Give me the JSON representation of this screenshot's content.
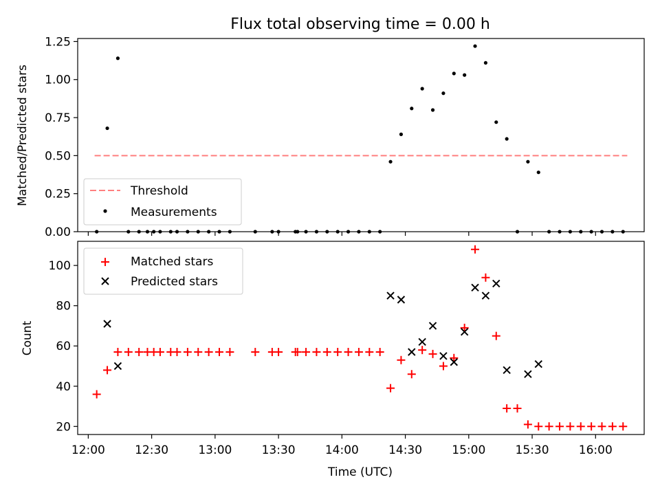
{
  "title": "Flux total observing time = 0.00 h",
  "colors": {
    "threshold": "#ff7f7f",
    "matched": "#ff0000",
    "predicted": "#000000",
    "measurement": "#000000"
  },
  "chart_data": [
    {
      "type": "scatter",
      "ylabel": "Matched/Predicted stars",
      "xlabel": "",
      "ylim": [
        0,
        1.27
      ],
      "yticks": [
        0,
        0.25,
        0.5,
        0.75,
        1.0,
        1.25
      ],
      "ytick_labels": [
        "0.00",
        "0.25",
        "0.50",
        "0.75",
        "1.00",
        "1.25"
      ],
      "grid": false,
      "legend": "lower-left",
      "threshold": {
        "name": "Threshold",
        "value": 0.5,
        "x_range": [
          "12:03",
          "16:15"
        ]
      },
      "series": [
        {
          "name": "Measurements",
          "points": [
            [
              "12:04",
              0
            ],
            [
              "12:09",
              0.68
            ],
            [
              "12:14",
              1.14
            ],
            [
              "12:19",
              0
            ],
            [
              "12:24",
              0
            ],
            [
              "12:28",
              0
            ],
            [
              "12:31",
              0
            ],
            [
              "12:34",
              0
            ],
            [
              "12:39",
              0
            ],
            [
              "12:42",
              0
            ],
            [
              "12:47",
              0
            ],
            [
              "12:52",
              0
            ],
            [
              "12:57",
              0
            ],
            [
              "13:02",
              0
            ],
            [
              "13:07",
              0
            ],
            [
              "13:19",
              0
            ],
            [
              "13:27",
              0
            ],
            [
              "13:30",
              0
            ],
            [
              "13:38",
              0
            ],
            [
              "13:39",
              0
            ],
            [
              "13:43",
              0
            ],
            [
              "13:48",
              0
            ],
            [
              "13:53",
              0
            ],
            [
              "13:58",
              0
            ],
            [
              "14:03",
              0
            ],
            [
              "14:08",
              0
            ],
            [
              "14:13",
              0
            ],
            [
              "14:18",
              0
            ],
            [
              "14:23",
              0.46
            ],
            [
              "14:28",
              0.64
            ],
            [
              "14:33",
              0.81
            ],
            [
              "14:38",
              0.94
            ],
            [
              "14:43",
              0.8
            ],
            [
              "14:48",
              0.91
            ],
            [
              "14:53",
              1.04
            ],
            [
              "14:58",
              1.03
            ],
            [
              "15:03",
              1.22
            ],
            [
              "15:08",
              1.11
            ],
            [
              "15:13",
              0.72
            ],
            [
              "15:18",
              0.61
            ],
            [
              "15:23",
              0
            ],
            [
              "15:28",
              0.46
            ],
            [
              "15:33",
              0.39
            ],
            [
              "15:38",
              0
            ],
            [
              "15:43",
              0
            ],
            [
              "15:48",
              0
            ],
            [
              "15:53",
              0
            ],
            [
              "15:58",
              0
            ],
            [
              "16:03",
              0
            ],
            [
              "16:08",
              0
            ],
            [
              "16:13",
              0
            ]
          ]
        }
      ]
    },
    {
      "type": "scatter",
      "ylabel": "Count",
      "xlabel": "Time (UTC)",
      "ylim": [
        16,
        112
      ],
      "yticks": [
        20,
        40,
        60,
        80,
        100
      ],
      "ytick_labels": [
        "20",
        "40",
        "60",
        "80",
        "100"
      ],
      "grid": false,
      "legend": "top-left",
      "series": [
        {
          "name": "Matched stars",
          "points": [
            [
              "12:04",
              36
            ],
            [
              "12:09",
              48
            ],
            [
              "12:14",
              57
            ],
            [
              "12:19",
              57
            ],
            [
              "12:24",
              57
            ],
            [
              "12:28",
              57
            ],
            [
              "12:31",
              57
            ],
            [
              "12:34",
              57
            ],
            [
              "12:39",
              57
            ],
            [
              "12:42",
              57
            ],
            [
              "12:47",
              57
            ],
            [
              "12:52",
              57
            ],
            [
              "12:57",
              57
            ],
            [
              "13:02",
              57
            ],
            [
              "13:07",
              57
            ],
            [
              "13:19",
              57
            ],
            [
              "13:27",
              57
            ],
            [
              "13:30",
              57
            ],
            [
              "13:38",
              57
            ],
            [
              "13:39",
              57
            ],
            [
              "13:43",
              57
            ],
            [
              "13:48",
              57
            ],
            [
              "13:53",
              57
            ],
            [
              "13:58",
              57
            ],
            [
              "14:03",
              57
            ],
            [
              "14:08",
              57
            ],
            [
              "14:13",
              57
            ],
            [
              "14:18",
              57
            ],
            [
              "14:23",
              39
            ],
            [
              "14:28",
              53
            ],
            [
              "14:33",
              46
            ],
            [
              "14:38",
              58
            ],
            [
              "14:43",
              56
            ],
            [
              "14:48",
              50
            ],
            [
              "14:53",
              54
            ],
            [
              "14:58",
              69
            ],
            [
              "15:03",
              108
            ],
            [
              "15:08",
              94
            ],
            [
              "15:13",
              65
            ],
            [
              "15:18",
              29
            ],
            [
              "15:23",
              29
            ],
            [
              "15:28",
              21
            ],
            [
              "15:33",
              20
            ],
            [
              "15:38",
              20
            ],
            [
              "15:43",
              20
            ],
            [
              "15:48",
              20
            ],
            [
              "15:53",
              20
            ],
            [
              "15:58",
              20
            ],
            [
              "16:03",
              20
            ],
            [
              "16:08",
              20
            ],
            [
              "16:13",
              20
            ]
          ]
        },
        {
          "name": "Predicted stars",
          "points": [
            [
              "12:09",
              71
            ],
            [
              "12:14",
              50
            ],
            [
              "14:23",
              85
            ],
            [
              "14:28",
              83
            ],
            [
              "14:33",
              57
            ],
            [
              "14:38",
              62
            ],
            [
              "14:43",
              70
            ],
            [
              "14:48",
              55
            ],
            [
              "14:53",
              52
            ],
            [
              "14:58",
              67
            ],
            [
              "15:03",
              89
            ],
            [
              "15:08",
              85
            ],
            [
              "15:13",
              91
            ],
            [
              "15:18",
              48
            ],
            [
              "15:28",
              46
            ],
            [
              "15:33",
              51
            ]
          ]
        }
      ]
    }
  ],
  "x_axis": {
    "range": [
      "11:55",
      "16:23"
    ],
    "ticks": [
      "12:00",
      "12:30",
      "13:00",
      "13:30",
      "14:00",
      "14:30",
      "15:00",
      "15:30",
      "16:00"
    ]
  }
}
